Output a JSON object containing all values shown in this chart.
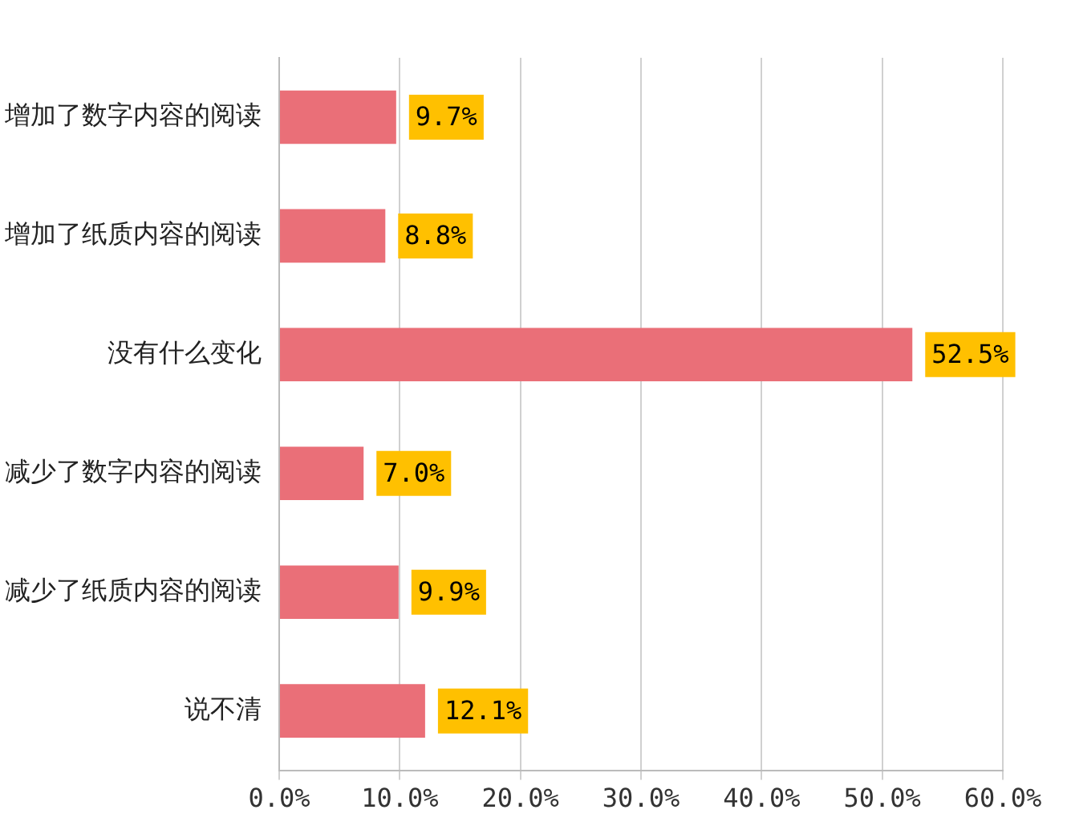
{
  "chart_data": {
    "type": "bar",
    "orientation": "horizontal",
    "categories": [
      "增加了数字内容的阅读",
      "增加了纸质内容的阅读",
      "没有什么变化",
      "减少了数字内容的阅读",
      "减少了纸质内容的阅读",
      "说不清"
    ],
    "values": [
      9.7,
      8.8,
      52.5,
      7.0,
      9.9,
      12.1
    ],
    "value_labels": [
      "9.7%",
      "8.8%",
      "52.5%",
      "7.0%",
      "9.9%",
      "12.1%"
    ],
    "color": "#ea6f78",
    "xlim": [
      0,
      60
    ],
    "xticks": [
      {
        "value": 0,
        "label": "0.0%"
      },
      {
        "value": 10,
        "label": "10.0%"
      },
      {
        "value": 20,
        "label": "20.0%"
      },
      {
        "value": 30,
        "label": "30.0%"
      },
      {
        "value": 40,
        "label": "40.0%"
      },
      {
        "value": 50,
        "label": "50.0%"
      },
      {
        "value": 60,
        "label": "60.0%"
      }
    ],
    "grid": "x",
    "legend": false
  }
}
